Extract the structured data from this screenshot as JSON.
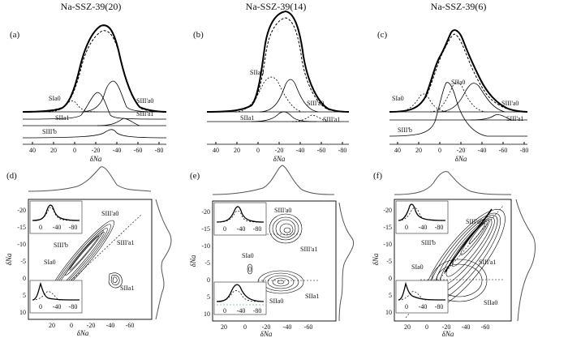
{
  "panels": [
    {
      "id": "a",
      "label": "(a)",
      "title": "Na-SSZ-39(20)",
      "peaks": [
        "SIa0",
        "SIIa1",
        "SIII'b",
        "SIII'a0",
        "SIII'a1"
      ],
      "xticks": [
        "40",
        "20",
        "0",
        "-20",
        "-40",
        "-60",
        "-80"
      ],
      "xlabel": "δNa"
    },
    {
      "id": "b",
      "label": "(b)",
      "title": "Na-SSZ-39(14)",
      "peaks": [
        "SIIa0",
        "SIII'a0",
        "SIIa1",
        "SIII'a1"
      ],
      "xticks": [
        "40",
        "20",
        "0",
        "-20",
        "-40",
        "-60",
        "-80"
      ],
      "xlabel": "δNa"
    },
    {
      "id": "c",
      "label": "(c)",
      "title": "Na-SSZ-39(6)",
      "peaks": [
        "SIa0",
        "SIIa0",
        "SIII'a0",
        "SIII'a1",
        "SIII'b"
      ],
      "xticks": [
        "40",
        "20",
        "0",
        "-20",
        "-40",
        "-60",
        "-80"
      ],
      "xlabel": "δNa"
    },
    {
      "id": "d",
      "label": "(d)",
      "peaks": [
        "SIII'a0",
        "SIII'b",
        "SIII'a1",
        "SIa0",
        "SIIa1"
      ],
      "yticks": [
        "-20",
        "-15",
        "-10",
        "-5",
        "0",
        "5",
        "10"
      ],
      "xticks": [
        "20",
        "0",
        "-20",
        "-40",
        "-60"
      ],
      "inset_ticks": [
        "0",
        "-40",
        "-80"
      ],
      "xlabel": "δNa",
      "ylabel": "δNa"
    },
    {
      "id": "e",
      "label": "(e)",
      "peaks": [
        "SIII'a0",
        "SIII'a1",
        "SIa0",
        "SIIa1",
        "SIIa0"
      ],
      "yticks": [
        "-20",
        "-15",
        "-10",
        "-5",
        "0",
        "5",
        "10"
      ],
      "xticks": [
        "20",
        "0",
        "-20",
        "-40",
        "-60"
      ],
      "inset_ticks": [
        "0",
        "-40",
        "-80"
      ],
      "xlabel": "δNa",
      "ylabel": "δNa"
    },
    {
      "id": "f",
      "label": "(f)",
      "peaks": [
        "SIII'a0",
        "SIII'b",
        "SIII'a1",
        "SIa0",
        "SIIa0"
      ],
      "yticks": [
        "-20",
        "-15",
        "-10",
        "-5",
        "0",
        "5",
        "10"
      ],
      "xticks": [
        "20",
        "0",
        "-20",
        "-40",
        "-60"
      ],
      "inset_ticks": [
        "0",
        "-40",
        "-80"
      ],
      "xlabel": "δNa",
      "ylabel": "δNa"
    }
  ]
}
